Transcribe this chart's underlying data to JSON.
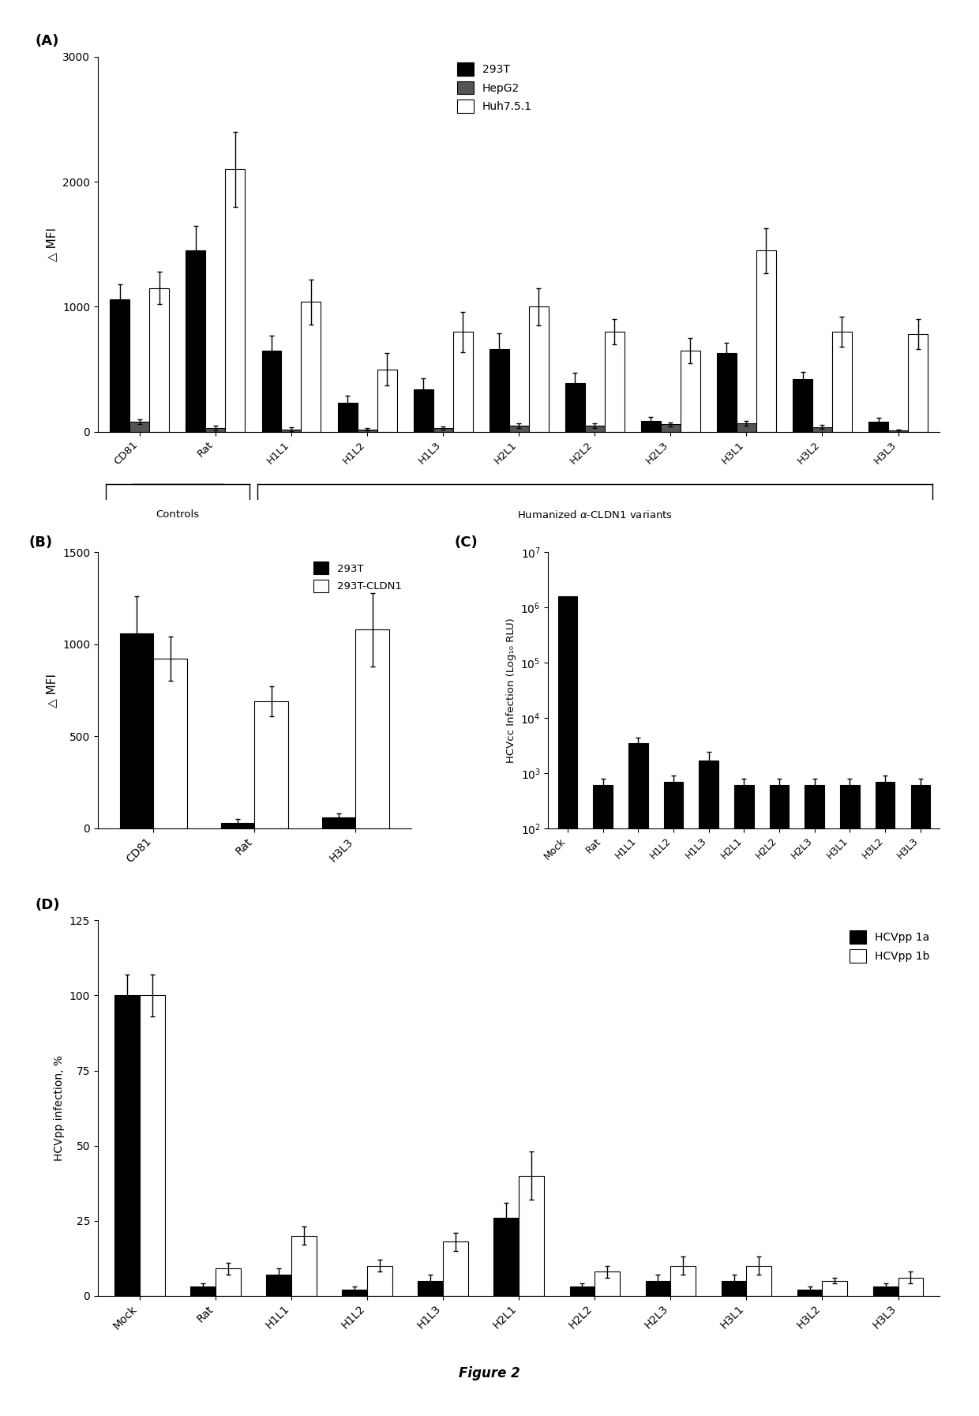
{
  "panel_A": {
    "categories": [
      "CD81",
      "Rat",
      "H1L1",
      "H1L2",
      "H1L3",
      "H2L1",
      "H2L2",
      "H2L3",
      "H3L1",
      "H3L2",
      "H3L3"
    ],
    "series_293T": [
      1060,
      1450,
      650,
      230,
      340,
      660,
      390,
      90,
      630,
      420,
      80
    ],
    "series_HepG2": [
      80,
      30,
      20,
      20,
      30,
      50,
      50,
      60,
      70,
      40,
      10
    ],
    "series_Huh751": [
      1150,
      2100,
      1040,
      500,
      800,
      1000,
      800,
      650,
      1450,
      800,
      780
    ],
    "err_293T": [
      120,
      200,
      120,
      60,
      90,
      130,
      80,
      30,
      80,
      60,
      30
    ],
    "err_HepG2": [
      20,
      20,
      15,
      10,
      15,
      20,
      20,
      15,
      20,
      15,
      10
    ],
    "err_Huh751": [
      130,
      300,
      180,
      130,
      160,
      150,
      100,
      100,
      180,
      120,
      120
    ],
    "ylabel": "△ MFI",
    "ylim": [
      0,
      3000
    ],
    "yticks": [
      0,
      1000,
      2000,
      3000
    ],
    "legend_labels": [
      "293T",
      "HepG2",
      "Huh7.5.1"
    ],
    "colors": [
      "#000000",
      "#555555",
      "#ffffff"
    ],
    "controls_label": "Controls",
    "humanized_label": "Humanized α-CLDN1 variants"
  },
  "panel_B": {
    "categories": [
      "CD81",
      "Rat",
      "H3L3"
    ],
    "series_293T": [
      1060,
      30,
      60
    ],
    "series_293TCLDN1": [
      920,
      690,
      1080
    ],
    "err_293T": [
      200,
      20,
      20
    ],
    "err_293TCLDN1": [
      120,
      80,
      200
    ],
    "ylabel": "△ MFI",
    "ylim": [
      0,
      1500
    ],
    "yticks": [
      0,
      500,
      1000,
      1500
    ],
    "legend_labels": [
      "293T",
      "293T-CLDN1"
    ],
    "colors": [
      "#000000",
      "#ffffff"
    ]
  },
  "panel_C": {
    "categories": [
      "Mock",
      "Rat",
      "H1L1",
      "H1L2",
      "H1L3",
      "H2L1",
      "H2L2",
      "H2L3",
      "H3L1",
      "H3L2",
      "H3L3"
    ],
    "values": [
      1600000,
      600,
      3500,
      700,
      1700,
      600,
      600,
      600,
      600,
      700,
      600
    ],
    "err_low": [
      0,
      150,
      700,
      150,
      500,
      150,
      150,
      150,
      150,
      150,
      150
    ],
    "err_high": [
      0,
      200,
      900,
      200,
      700,
      200,
      200,
      200,
      200,
      200,
      200
    ],
    "ylabel": "HCVcc Infection (Log₁₀ RLU)",
    "ylim_low": 100,
    "ylim_high": 10000000,
    "color": "#000000"
  },
  "panel_D": {
    "categories": [
      "Mock",
      "Rat",
      "H1L1",
      "H1L2",
      "H1L3",
      "H2L1",
      "H2L2",
      "H2L3",
      "H3L1",
      "H3L2",
      "H3L3"
    ],
    "series_1a": [
      100,
      3,
      7,
      2,
      5,
      26,
      3,
      5,
      5,
      2,
      3
    ],
    "series_1b": [
      100,
      9,
      20,
      10,
      18,
      40,
      8,
      10,
      10,
      5,
      6
    ],
    "err_1a": [
      7,
      1,
      2,
      1,
      2,
      5,
      1,
      2,
      2,
      1,
      1
    ],
    "err_1b": [
      7,
      2,
      3,
      2,
      3,
      8,
      2,
      3,
      3,
      1,
      2
    ],
    "ylabel": "HCVpp infection, %",
    "ylim": [
      0,
      125
    ],
    "yticks": [
      0,
      25,
      50,
      75,
      100,
      125
    ],
    "legend_labels": [
      "HCVpp 1a",
      "HCVpp 1b"
    ],
    "colors": [
      "#000000",
      "#ffffff"
    ]
  },
  "figure_label": "Figure 2",
  "background_color": "#ffffff"
}
